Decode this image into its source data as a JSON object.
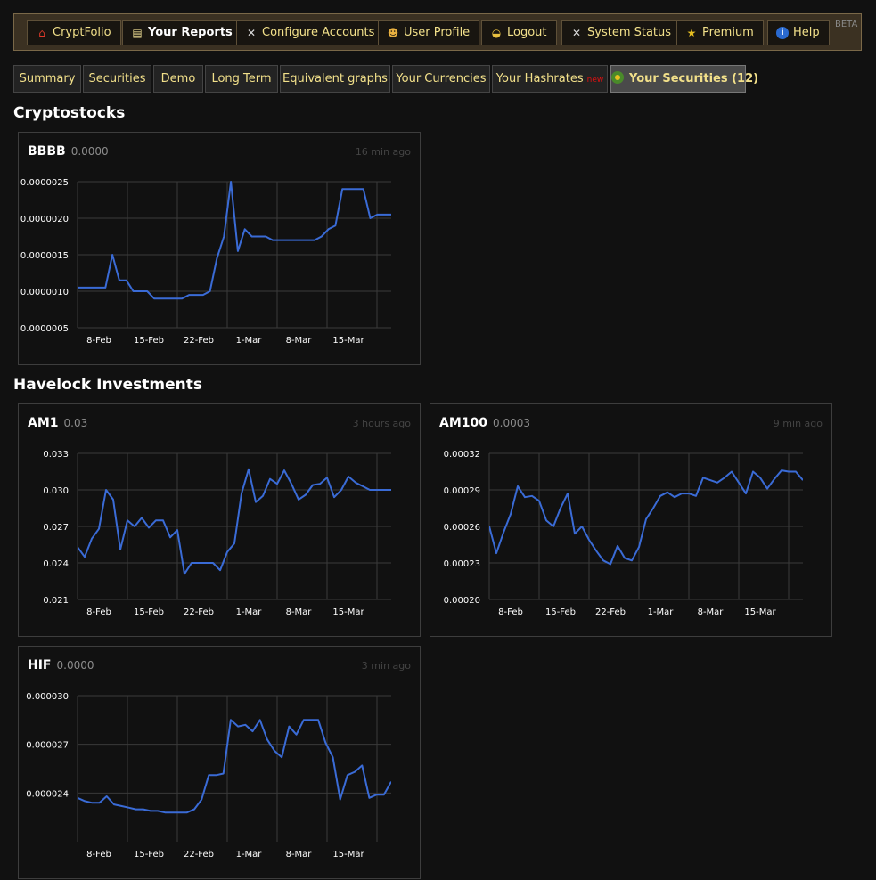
{
  "nav": {
    "items": [
      {
        "label": "CryptFolio",
        "icon": "house-icon"
      },
      {
        "label": "Your Reports",
        "icon": "report-icon"
      },
      {
        "label": "Configure Accounts",
        "icon": "tools-icon"
      },
      {
        "label": "User Profile",
        "icon": "users-icon"
      },
      {
        "label": "Logout",
        "icon": "logout-icon"
      },
      {
        "label": "System Status",
        "icon": "tools-icon"
      },
      {
        "label": "Premium",
        "icon": "star-icon"
      },
      {
        "label": "Help",
        "icon": "info-icon"
      }
    ],
    "beta": "BETA"
  },
  "tabs": [
    {
      "label": "Summary"
    },
    {
      "label": "Securities"
    },
    {
      "label": "Demo"
    },
    {
      "label": "Long Term"
    },
    {
      "label": "Equivalent graphs"
    },
    {
      "label": "Your Currencies"
    },
    {
      "label": "Your Hashrates",
      "badge": "new"
    },
    {
      "label": "Your Securities (12)"
    }
  ],
  "sections": [
    {
      "title": "Cryptostocks"
    },
    {
      "title": "Havelock Investments"
    }
  ],
  "colors": {
    "line": "#3a6bd6",
    "grid": "#3a3a3a",
    "accent": "#f2e08a"
  },
  "chart_data": [
    {
      "type": "line",
      "name": "BBBB",
      "price": "0.0000",
      "ago": "16 min ago",
      "y_ticks": [
        "0.0000025",
        "0.0000020",
        "0.0000015",
        "0.0000010",
        "0.0000005"
      ],
      "ylim": [
        5e-07,
        2.5e-06
      ],
      "x_ticks": [
        "8-Feb",
        "15-Feb",
        "22-Feb",
        "1-Mar",
        "8-Mar",
        "15-Mar"
      ],
      "values": [
        1.05e-06,
        1.05e-06,
        1.05e-06,
        1.05e-06,
        1.05e-06,
        1.5e-06,
        1.15e-06,
        1.15e-06,
        1e-06,
        1e-06,
        1e-06,
        9e-07,
        9e-07,
        9e-07,
        9e-07,
        9e-07,
        9.5e-07,
        9.5e-07,
        9.5e-07,
        1e-06,
        1.45e-06,
        1.75e-06,
        2.5e-06,
        1.55e-06,
        1.85e-06,
        1.75e-06,
        1.75e-06,
        1.75e-06,
        1.7e-06,
        1.7e-06,
        1.7e-06,
        1.7e-06,
        1.7e-06,
        1.7e-06,
        1.7e-06,
        1.75e-06,
        1.85e-06,
        1.9e-06,
        2.4e-06,
        2.4e-06,
        2.4e-06,
        2.4e-06,
        2e-06,
        2.05e-06,
        2.05e-06,
        2.05e-06
      ]
    },
    {
      "type": "line",
      "name": "AM1",
      "price": "0.03",
      "ago": "3 hours ago",
      "y_ticks": [
        "0.033",
        "0.030",
        "0.027",
        "0.024",
        "0.021"
      ],
      "ylim": [
        0.021,
        0.033
      ],
      "x_ticks": [
        "8-Feb",
        "15-Feb",
        "22-Feb",
        "1-Mar",
        "8-Mar",
        "15-Mar"
      ],
      "values": [
        0.0253,
        0.0245,
        0.026,
        0.0268,
        0.03,
        0.0292,
        0.0251,
        0.0275,
        0.027,
        0.0277,
        0.0269,
        0.0275,
        0.0275,
        0.0261,
        0.0267,
        0.0231,
        0.024,
        0.024,
        0.024,
        0.024,
        0.0234,
        0.0249,
        0.0256,
        0.0297,
        0.0317,
        0.029,
        0.0295,
        0.0309,
        0.0305,
        0.0316,
        0.0305,
        0.0292,
        0.0296,
        0.0304,
        0.0305,
        0.031,
        0.0294,
        0.03,
        0.0311,
        0.0306,
        0.0303,
        0.03,
        0.03,
        0.03,
        0.03
      ]
    },
    {
      "type": "line",
      "name": "AM100",
      "price": "0.0003",
      "ago": "9 min ago",
      "y_ticks": [
        "0.00032",
        "0.00029",
        "0.00026",
        "0.00023",
        "0.00020"
      ],
      "ylim": [
        0.0002,
        0.00032
      ],
      "x_ticks": [
        "8-Feb",
        "15-Feb",
        "22-Feb",
        "1-Mar",
        "8-Mar",
        "15-Mar"
      ],
      "values": [
        0.00026,
        0.000238,
        0.000255,
        0.00027,
        0.000293,
        0.000284,
        0.000285,
        0.000281,
        0.000265,
        0.00026,
        0.000275,
        0.000287,
        0.000254,
        0.00026,
        0.000249,
        0.00024,
        0.000232,
        0.000229,
        0.000244,
        0.000234,
        0.000232,
        0.000243,
        0.000266,
        0.000275,
        0.000285,
        0.000288,
        0.000284,
        0.000287,
        0.000287,
        0.000285,
        0.0003,
        0.000298,
        0.000296,
        0.0003,
        0.000305,
        0.000296,
        0.000287,
        0.000305,
        0.0003,
        0.000291,
        0.000299,
        0.000306,
        0.000305,
        0.000305,
        0.000298
      ]
    },
    {
      "type": "line",
      "name": "HIF",
      "price": "0.0000",
      "ago": "3 min ago",
      "y_ticks": [
        "0.000030",
        "0.000027",
        "0.000024"
      ],
      "ylim": [
        2.1e-05,
        3e-05
      ],
      "x_ticks": [
        "8-Feb",
        "15-Feb",
        "22-Feb",
        "1-Mar",
        "8-Mar",
        "15-Mar"
      ],
      "values": [
        2.37e-05,
        2.35e-05,
        2.34e-05,
        2.34e-05,
        2.38e-05,
        2.33e-05,
        2.32e-05,
        2.31e-05,
        2.3e-05,
        2.3e-05,
        2.29e-05,
        2.29e-05,
        2.28e-05,
        2.28e-05,
        2.28e-05,
        2.28e-05,
        2.3e-05,
        2.36e-05,
        2.51e-05,
        2.51e-05,
        2.52e-05,
        2.85e-05,
        2.81e-05,
        2.82e-05,
        2.78e-05,
        2.85e-05,
        2.73e-05,
        2.66e-05,
        2.62e-05,
        2.81e-05,
        2.76e-05,
        2.85e-05,
        2.85e-05,
        2.85e-05,
        2.71e-05,
        2.62e-05,
        2.36e-05,
        2.51e-05,
        2.53e-05,
        2.57e-05,
        2.37e-05,
        2.39e-05,
        2.39e-05,
        2.47e-05
      ]
    }
  ]
}
